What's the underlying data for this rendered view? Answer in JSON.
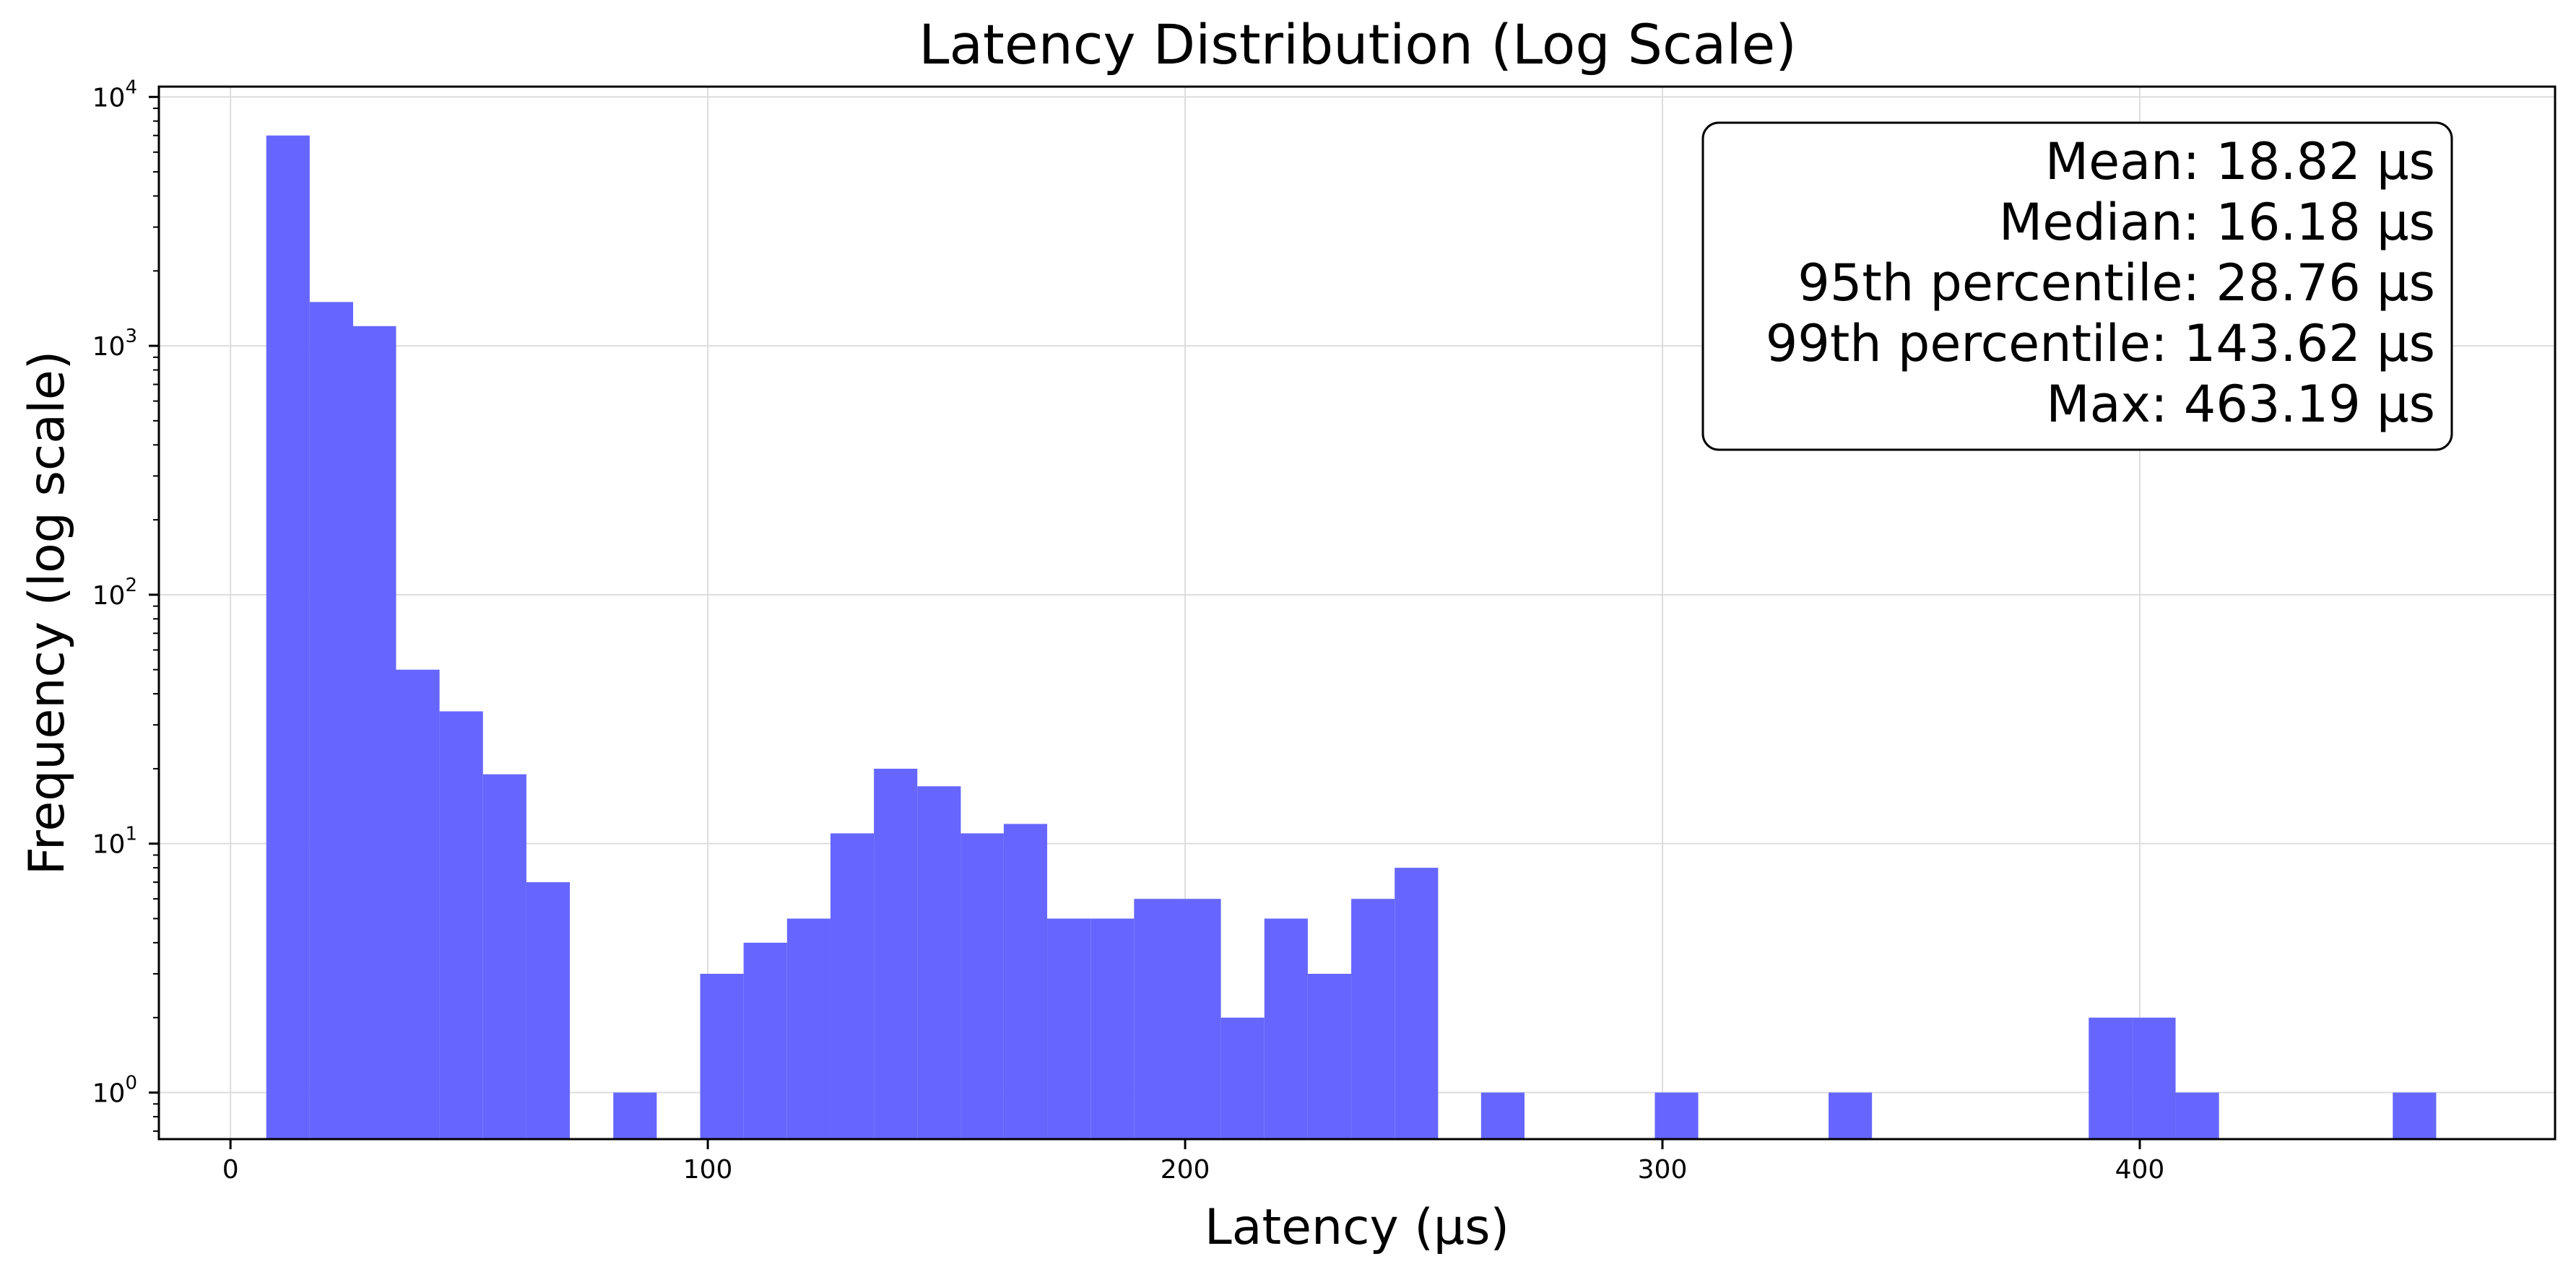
{
  "chart_data": {
    "type": "bar",
    "title": "Latency Distribution (Log Scale)",
    "xlabel": "Latency (μs)",
    "ylabel": "Frequency (log scale)",
    "xlim": [
      -15,
      487
    ],
    "ylim": [
      0.65,
      11000
    ],
    "y_scale": "log",
    "grid": true,
    "bar_color": "#6666ff",
    "x_ticks": [
      0,
      100,
      200,
      300,
      400
    ],
    "x_tick_labels": [
      "0",
      "100",
      "200",
      "300",
      "400"
    ],
    "y_ticks": [
      1,
      10,
      100,
      1000,
      10000
    ],
    "y_tick_labels": [
      {
        "base": "10",
        "exp": "0"
      },
      {
        "base": "10",
        "exp": "1"
      },
      {
        "base": "10",
        "exp": "2"
      },
      {
        "base": "10",
        "exp": "3"
      },
      {
        "base": "10",
        "exp": "4"
      }
    ],
    "bins": [
      {
        "start": 7.5,
        "end": 16.6,
        "count": 7000
      },
      {
        "start": 16.6,
        "end": 25.7,
        "count": 1500
      },
      {
        "start": 25.7,
        "end": 34.7,
        "count": 1200
      },
      {
        "start": 34.7,
        "end": 43.8,
        "count": 50
      },
      {
        "start": 43.8,
        "end": 52.9,
        "count": 34
      },
      {
        "start": 52.9,
        "end": 62.0,
        "count": 19
      },
      {
        "start": 62.0,
        "end": 71.1,
        "count": 7
      },
      {
        "start": 80.2,
        "end": 89.3,
        "count": 1
      },
      {
        "start": 98.4,
        "end": 107.5,
        "count": 3
      },
      {
        "start": 107.5,
        "end": 116.6,
        "count": 4
      },
      {
        "start": 116.6,
        "end": 125.7,
        "count": 5
      },
      {
        "start": 125.7,
        "end": 134.8,
        "count": 11
      },
      {
        "start": 134.8,
        "end": 143.9,
        "count": 20
      },
      {
        "start": 143.9,
        "end": 153.0,
        "count": 17
      },
      {
        "start": 153.0,
        "end": 162.0,
        "count": 11
      },
      {
        "start": 162.0,
        "end": 171.1,
        "count": 12
      },
      {
        "start": 171.1,
        "end": 180.2,
        "count": 5
      },
      {
        "start": 180.2,
        "end": 189.3,
        "count": 5
      },
      {
        "start": 189.3,
        "end": 198.4,
        "count": 6
      },
      {
        "start": 198.4,
        "end": 207.5,
        "count": 6
      },
      {
        "start": 207.5,
        "end": 216.6,
        "count": 2
      },
      {
        "start": 216.6,
        "end": 225.7,
        "count": 5
      },
      {
        "start": 225.7,
        "end": 234.8,
        "count": 3
      },
      {
        "start": 234.8,
        "end": 243.9,
        "count": 6
      },
      {
        "start": 243.9,
        "end": 253.0,
        "count": 8
      },
      {
        "start": 262.0,
        "end": 271.1,
        "count": 1
      },
      {
        "start": 298.4,
        "end": 307.5,
        "count": 1
      },
      {
        "start": 334.8,
        "end": 343.9,
        "count": 1
      },
      {
        "start": 389.3,
        "end": 398.4,
        "count": 2
      },
      {
        "start": 398.4,
        "end": 407.5,
        "count": 2
      },
      {
        "start": 407.5,
        "end": 416.6,
        "count": 1
      },
      {
        "start": 453.0,
        "end": 462.1,
        "count": 1
      }
    ],
    "stats": [
      "Mean: 18.82 μs",
      "Median: 16.18 μs",
      "95th percentile: 28.76 μs",
      "99th percentile: 143.62 μs",
      "Max: 463.19 μs"
    ],
    "stats_placement": "top-right"
  }
}
